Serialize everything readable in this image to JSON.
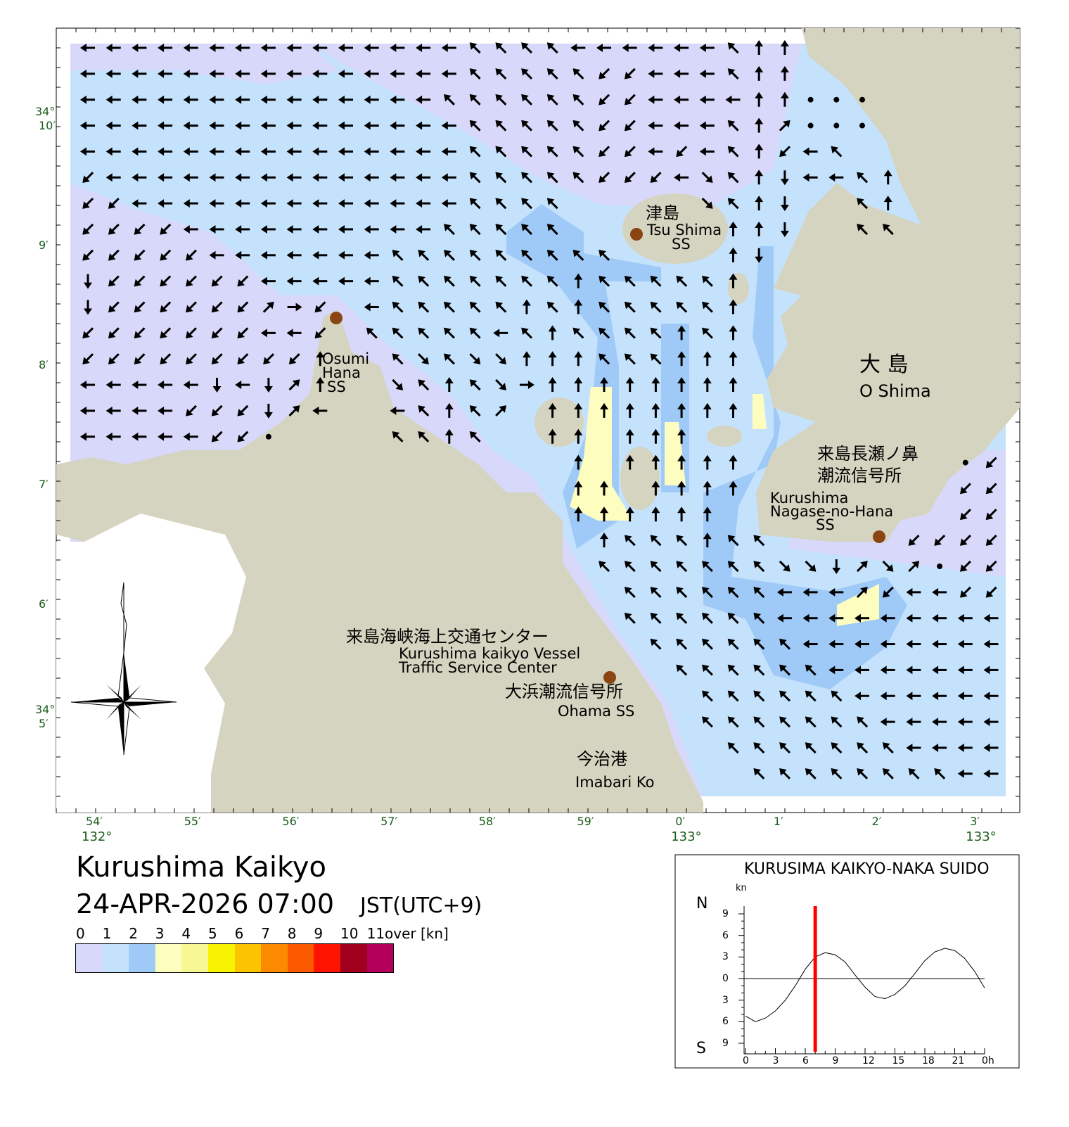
{
  "title": "Kurushima Kaikyo",
  "datetime": "24-APR-2026 07:00",
  "timezone": "JST(UTC+9)",
  "colors": {
    "sea0": "#d8d8fa",
    "sea1": "#c5e2fd",
    "sea2": "#9fcaf8",
    "land": "#d4d4c0",
    "station": "#8b4513",
    "grid_label": "#1a5c1a"
  },
  "legend": {
    "labels": [
      "0",
      "1",
      "2",
      "3",
      "4",
      "5",
      "6",
      "7",
      "8",
      "9",
      "10",
      "11over [kn]"
    ],
    "colors": [
      "#d8d8fa",
      "#c5e2fd",
      "#9fcaf8",
      "#fdfdc0",
      "#f7f794",
      "#f7f300",
      "#fcc400",
      "#fc8a00",
      "#fc5a00",
      "#fc1400",
      "#a0001e",
      "#b4005a"
    ]
  },
  "map": {
    "lon_labels": [
      [
        "54′",
        "132°"
      ],
      [
        "55′",
        ""
      ],
      [
        "56′",
        ""
      ],
      [
        "57′",
        ""
      ],
      [
        "58′",
        ""
      ],
      [
        "59′",
        ""
      ],
      [
        "0′",
        "133°"
      ],
      [
        "1′",
        ""
      ],
      [
        "2′",
        ""
      ],
      [
        "3′",
        "133°"
      ]
    ],
    "lat_labels": [
      [
        "34°",
        "10′"
      ],
      [
        "",
        "9′"
      ],
      [
        "",
        "8′"
      ],
      [
        "",
        "7′"
      ],
      [
        "",
        "6′"
      ],
      [
        "34°",
        "5′"
      ]
    ],
    "places": {
      "tsushima_jp": "津島",
      "tsushima_en": "Tsu Shima",
      "tsushima_ss": "SS",
      "osumi1": "Osumi",
      "osumi2": "Hana",
      "osumi3": "SS",
      "oshima_jp": "大 島",
      "oshima_en": "O Shima",
      "nagase_jp1": "来島長瀬ノ鼻",
      "nagase_jp2": "潮流信号所",
      "nagase_en1": "Kurushima",
      "nagase_en2": "Nagase-no-Hana",
      "nagase_en3": "SS",
      "vts_jp": "来島海峡海上交通センター",
      "vts_en1": "Kurushima kaikyo Vessel",
      "vts_en2": "Traffic Service Center",
      "ohama_jp": "大浜潮流信号所",
      "ohama_en": "Ohama SS",
      "imabari_jp": "今治港",
      "imabari_en": "Imabari Ko"
    },
    "arrow_codes": "w=W q=NW n=N e=NE E=E c=SE s=S z=SW .=slack _=none",
    "arrows": [
      "wwwwwwwwwwwwwwwqqqqwwwwwwqnn________",
      "wwwwwwwwwwwwwwwqqqqqzzwwwqnn________",
      "wwwwwwwwwwwwwwqqqqqqzzwwwwnn..._____",
      "wwwwwwwwwwwwwwwqqqqqzzwwwqne..._____",
      "wwwwwwwwwwwwwwwqqqqqzzwzwqnzwq______",
      "zwwwwwwwwwwwwwwqqqqqzzzwcqnswwqn____",
      "zzwwwwwwwwwwwwwqqqq_____cqns__qn____",
      "zzzzwwwwwwwwwwqqqqq______nns__qq____",
      "zzzzzwwwwwwwqqqqqqqqq____ns_________",
      "szzzzzzwwwwwqqqqqqqnqqqqqn__________",
      "szzzzzzeEz_wqqqqqnqnqqqqqn__________",
      "zzzzzzzwwz_qqqqqwqnqqqqnqn__________",
      "zzzzzzzzzn__qcqccnnnqqqnnn__________",
      "wwwwwswsen__cqnqcEnnnnnnnn__________",
      "wwwwzzzsew__wqnqe_nnnnnnnn__________",
      "wwwwwzz.____qqnq__nn_nnn____________",
      "___________________n_nnnnn________.z",
      "___________________nn_nnnn________zz",
      "___________________nnnnnn_________zz",
      "____________________nqqqnqq_____zzzz",
      "____________________qqqqqqqccsece.zz",
      "_____________________qqqqqqwwwezwwzz",
      "_____________________qqqqqqwwwwwwwww",
      "______________________qqqqqqwwwwwwww",
      "_______________________qqqqqqwwwwwww",
      "________________________qqqqqqwwwwww",
      "________________________qqqqqqqwwwww",
      "_________________________qqqqqqqwwww",
      "__________________________qqqqqqqqww"
    ]
  },
  "chart": {
    "title": "KURUSIMA KAIKYO-NAKA SUIDO",
    "unit": "kn",
    "north": "N",
    "south": "S",
    "y_tick_labels": [
      "9",
      "6",
      "3",
      "0",
      "3",
      "6",
      "9"
    ],
    "x_tick_labels": [
      "0",
      "3",
      "6",
      "9",
      "12",
      "15",
      "18",
      "21",
      "0h"
    ],
    "chart_data": {
      "type": "line",
      "x_unit": "hour",
      "y_unit": "kn (N positive, S negative)",
      "xlim": [
        0,
        24
      ],
      "ylim": [
        -9,
        9
      ],
      "x": [
        0,
        1,
        2,
        3,
        4,
        5,
        6,
        7,
        8,
        9,
        10,
        11,
        12,
        13,
        14,
        15,
        16,
        17,
        18,
        19,
        20,
        21,
        22,
        23,
        24
      ],
      "values": [
        -5.2,
        -6,
        -5.5,
        -4.5,
        -3,
        -1,
        1.3,
        3,
        3.6,
        3.3,
        2.3,
        0.5,
        -1.2,
        -2.5,
        -2.8,
        -2.2,
        -1,
        0.7,
        2.5,
        3.7,
        4.2,
        3.9,
        2.8,
        1,
        -1.3
      ],
      "current_time": 7,
      "current_marker_color": "#ff0000"
    }
  }
}
